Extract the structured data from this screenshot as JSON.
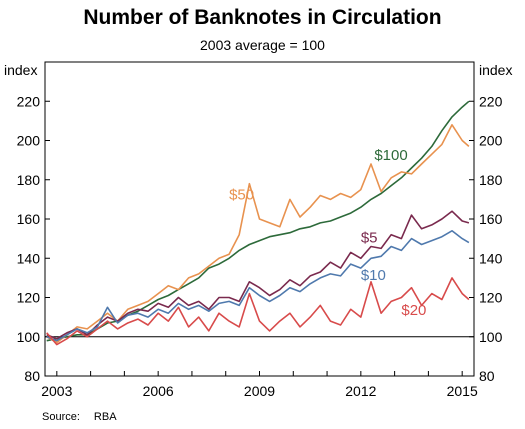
{
  "source": {
    "label": "Source:",
    "value": "RBA"
  },
  "chart_data": {
    "type": "line",
    "title": "Number of Banknotes in Circulation",
    "subtitle": "2003 average = 100",
    "ylabel_left": "index",
    "ylabel_right": "index",
    "ylim": [
      80,
      240
    ],
    "yticks": [
      80,
      100,
      120,
      140,
      160,
      180,
      200,
      220
    ],
    "xlim": [
      2002.65,
      2015.35
    ],
    "xticks": [
      2003,
      2006,
      2009,
      2012,
      2015
    ],
    "xtick_labels": [
      "2003",
      "2006",
      "2009",
      "2012",
      "2015"
    ],
    "reference_line": 100,
    "series": [
      {
        "name": "$100",
        "color": "#2d6a3a",
        "x": [
          2002.7,
          2003.0,
          2003.3,
          2003.6,
          2003.9,
          2004.2,
          2004.5,
          2004.8,
          2005.1,
          2005.4,
          2005.7,
          2006.0,
          2006.3,
          2006.6,
          2006.9,
          2007.2,
          2007.5,
          2007.8,
          2008.1,
          2008.4,
          2008.7,
          2009.0,
          2009.3,
          2009.6,
          2009.9,
          2010.2,
          2010.5,
          2010.8,
          2011.1,
          2011.4,
          2011.7,
          2012.0,
          2012.3,
          2012.6,
          2012.9,
          2013.2,
          2013.5,
          2013.8,
          2014.1,
          2014.4,
          2014.7,
          2015.0,
          2015.2
        ],
        "values": [
          98,
          99,
          100,
          101,
          101,
          104,
          107,
          108,
          111,
          113,
          116,
          119,
          121,
          124,
          127,
          130,
          135,
          137,
          140,
          144,
          147,
          149,
          151,
          152,
          153,
          155,
          156,
          158,
          159,
          161,
          163,
          166,
          170,
          173,
          177,
          181,
          186,
          191,
          197,
          205,
          212,
          217,
          220
        ]
      },
      {
        "name": "$50",
        "color": "#e8924f",
        "x": [
          2002.7,
          2003.0,
          2003.3,
          2003.6,
          2003.9,
          2004.2,
          2004.5,
          2004.8,
          2005.1,
          2005.4,
          2005.7,
          2006.0,
          2006.3,
          2006.6,
          2006.9,
          2007.2,
          2007.5,
          2007.8,
          2008.1,
          2008.4,
          2008.7,
          2009.0,
          2009.3,
          2009.6,
          2009.9,
          2010.2,
          2010.5,
          2010.8,
          2011.1,
          2011.4,
          2011.7,
          2012.0,
          2012.3,
          2012.6,
          2012.9,
          2013.2,
          2013.5,
          2013.8,
          2014.1,
          2014.4,
          2014.7,
          2015.0,
          2015.2
        ],
        "values": [
          100,
          97,
          101,
          105,
          104,
          108,
          112,
          108,
          114,
          116,
          118,
          122,
          126,
          124,
          130,
          132,
          136,
          140,
          142,
          152,
          178,
          160,
          158,
          156,
          170,
          161,
          166,
          172,
          170,
          173,
          171,
          175,
          188,
          174,
          181,
          184,
          183,
          188,
          193,
          198,
          208,
          200,
          197
        ]
      },
      {
        "name": "$5",
        "color": "#7a2a4e",
        "x": [
          2002.7,
          2003.0,
          2003.3,
          2003.6,
          2003.9,
          2004.2,
          2004.5,
          2004.8,
          2005.1,
          2005.4,
          2005.7,
          2006.0,
          2006.3,
          2006.6,
          2006.9,
          2007.2,
          2007.5,
          2007.8,
          2008.1,
          2008.4,
          2008.7,
          2009.0,
          2009.3,
          2009.6,
          2009.9,
          2010.2,
          2010.5,
          2010.8,
          2011.1,
          2011.4,
          2011.7,
          2012.0,
          2012.3,
          2012.6,
          2012.9,
          2013.2,
          2013.5,
          2013.8,
          2014.1,
          2014.4,
          2014.7,
          2015.0,
          2015.2
        ],
        "values": [
          101,
          99,
          102,
          104,
          101,
          106,
          110,
          108,
          112,
          114,
          113,
          117,
          115,
          120,
          116,
          118,
          114,
          120,
          120,
          118,
          128,
          125,
          121,
          124,
          129,
          126,
          131,
          133,
          138,
          135,
          143,
          140,
          146,
          145,
          152,
          150,
          162,
          155,
          157,
          160,
          164,
          159,
          158
        ]
      },
      {
        "name": "$10",
        "color": "#4f79ad",
        "x": [
          2002.7,
          2003.0,
          2003.3,
          2003.6,
          2003.9,
          2004.2,
          2004.5,
          2004.8,
          2005.1,
          2005.4,
          2005.7,
          2006.0,
          2006.3,
          2006.6,
          2006.9,
          2007.2,
          2007.5,
          2007.8,
          2008.1,
          2008.4,
          2008.7,
          2009.0,
          2009.3,
          2009.6,
          2009.9,
          2010.2,
          2010.5,
          2010.8,
          2011.1,
          2011.4,
          2011.7,
          2012.0,
          2012.3,
          2012.6,
          2012.9,
          2013.2,
          2013.5,
          2013.8,
          2014.1,
          2014.4,
          2014.7,
          2015.0,
          2015.2
        ],
        "values": [
          100,
          98,
          101,
          104,
          102,
          105,
          115,
          107,
          111,
          112,
          110,
          114,
          112,
          117,
          114,
          116,
          113,
          117,
          118,
          116,
          125,
          121,
          118,
          121,
          125,
          123,
          127,
          130,
          132,
          131,
          137,
          135,
          140,
          141,
          146,
          144,
          150,
          147,
          149,
          151,
          154,
          150,
          148
        ]
      },
      {
        "name": "$20",
        "color": "#d84b4b",
        "x": [
          2002.7,
          2003.0,
          2003.3,
          2003.6,
          2003.9,
          2004.2,
          2004.5,
          2004.8,
          2005.1,
          2005.4,
          2005.7,
          2006.0,
          2006.3,
          2006.6,
          2006.9,
          2007.2,
          2007.5,
          2007.8,
          2008.1,
          2008.4,
          2008.7,
          2009.0,
          2009.3,
          2009.6,
          2009.9,
          2010.2,
          2010.5,
          2010.8,
          2011.1,
          2011.4,
          2011.7,
          2012.0,
          2012.3,
          2012.6,
          2012.9,
          2013.2,
          2013.5,
          2013.8,
          2014.1,
          2014.4,
          2014.7,
          2015.0,
          2015.2
        ],
        "values": [
          102,
          96,
          99,
          103,
          100,
          104,
          108,
          104,
          107,
          109,
          106,
          112,
          108,
          115,
          105,
          110,
          103,
          112,
          108,
          105,
          122,
          108,
          103,
          108,
          112,
          105,
          110,
          116,
          108,
          106,
          114,
          110,
          128,
          112,
          118,
          120,
          125,
          116,
          122,
          119,
          130,
          122,
          119
        ]
      }
    ],
    "annotations": [
      {
        "text": "$100",
        "series": "$100",
        "x": 2012.4,
        "y": 190
      },
      {
        "text": "$50",
        "series": "$50",
        "x": 2008.1,
        "y": 170
      },
      {
        "text": "$5",
        "series": "$5",
        "x": 2012.0,
        "y": 148
      },
      {
        "text": "$10",
        "series": "$10",
        "x": 2012.0,
        "y": 129
      },
      {
        "text": "$20",
        "series": "$20",
        "x": 2013.2,
        "y": 111
      }
    ]
  }
}
